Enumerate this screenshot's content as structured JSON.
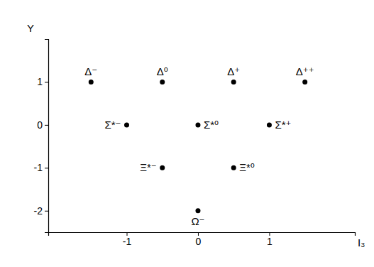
{
  "chart_data": {
    "type": "scatter",
    "x_label": "I₃",
    "y_label": "Y",
    "x": [
      -1.5,
      -0.5,
      0.5,
      1.5,
      -1,
      0,
      1,
      -0.5,
      0.5,
      0
    ],
    "values": [
      1,
      1,
      1,
      1,
      0,
      0,
      0,
      -1,
      -1,
      -2
    ],
    "labels": [
      "Δ⁻",
      "Δ⁰",
      "Δ⁺",
      "Δ⁺⁺",
      "Σ*⁻",
      "Σ*⁰",
      "Σ*⁺",
      "Ξ*⁻",
      "Ξ*⁰",
      "Ω⁻"
    ],
    "color": "#000000",
    "marker": "circle",
    "xlim": [
      -2.1,
      2.2
    ],
    "ylim": [
      -2.5,
      2
    ],
    "xticks": [
      -1,
      0,
      1
    ],
    "yticks": [
      -2,
      -1,
      0,
      1
    ]
  }
}
